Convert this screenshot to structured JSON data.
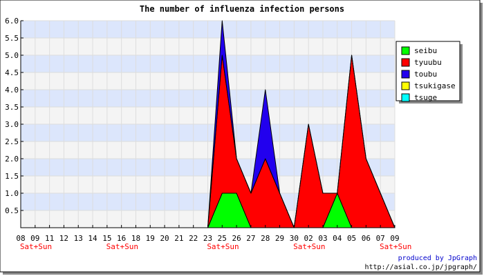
{
  "chart_data": {
    "type": "area",
    "title": "The number of influenza infection persons",
    "xlabel": "",
    "ylabel": "",
    "ylim": [
      0,
      6.0
    ],
    "y_ticks": [
      "6.0",
      "5.5",
      "5.0",
      "4.5",
      "4.0",
      "3.5",
      "3.0",
      "2.5",
      "2.0",
      "1.5",
      "1.0",
      "0.5"
    ],
    "grid": true,
    "legend_position": "top-right",
    "categories": [
      "08",
      "09",
      "11",
      "12",
      "13",
      "14",
      "15",
      "16",
      "18",
      "19",
      "20",
      "21",
      "22",
      "23",
      "25",
      "26",
      "27",
      "28",
      "29",
      "30",
      "02",
      "03",
      "04",
      "05",
      "06",
      "07",
      "09"
    ],
    "weekend_markers": [
      {
        "category_index": 0,
        "label": "Sat+Sun"
      },
      {
        "category_index": 6,
        "label": "Sat+Sun"
      },
      {
        "category_index": 13,
        "label": "Sat+Sun"
      },
      {
        "category_index": 19,
        "label": "Sat+Sun"
      },
      {
        "category_index": 25,
        "label": "Sat+Sun"
      }
    ],
    "series": [
      {
        "name": "seibu",
        "color": "#00ff00",
        "values": [
          0,
          0,
          0,
          0,
          0,
          0,
          0,
          0,
          0,
          0,
          0,
          0,
          0,
          0,
          1,
          1,
          0,
          0,
          0,
          0,
          0,
          0,
          1,
          0,
          0,
          0,
          0
        ]
      },
      {
        "name": "tyuubu",
        "color": "#ff0000",
        "values": [
          0,
          0,
          0,
          0,
          0,
          0,
          0,
          0,
          0,
          0,
          0,
          0,
          0,
          0,
          4,
          1,
          1,
          2,
          1,
          0,
          3,
          1,
          0,
          5,
          2,
          1,
          0
        ]
      },
      {
        "name": "toubu",
        "color": "#2200ee",
        "values": [
          0,
          0,
          0,
          0,
          0,
          0,
          0,
          0,
          0,
          0,
          0,
          0,
          0,
          0,
          1,
          0,
          0,
          2,
          0,
          0,
          0,
          0,
          0,
          0,
          0,
          0,
          0
        ]
      },
      {
        "name": "tsukigase",
        "color": "#ffff00",
        "values": [
          0,
          0,
          0,
          0,
          0,
          0,
          0,
          0,
          0,
          0,
          0,
          0,
          0,
          0,
          0,
          0,
          0,
          0,
          0,
          0,
          0,
          0,
          0,
          0,
          0,
          0,
          0
        ]
      },
      {
        "name": "tsuge",
        "color": "#00ffff",
        "values": [
          0,
          0,
          0,
          0,
          0,
          0,
          0,
          0,
          0,
          0,
          0,
          0,
          0,
          0,
          0,
          0,
          0,
          0,
          0,
          0,
          0,
          0,
          0,
          0,
          0,
          0,
          0
        ]
      }
    ]
  },
  "footer": {
    "credit_line1": "produced by JpGraph",
    "credit_line2": "http://asial.co.jp/jpgraph/"
  },
  "colors": {
    "band_light": "#f4f4f4",
    "band_blue": "#dce6fc",
    "weekend_label": "#ff0000",
    "credit_text": "#0000cc"
  }
}
